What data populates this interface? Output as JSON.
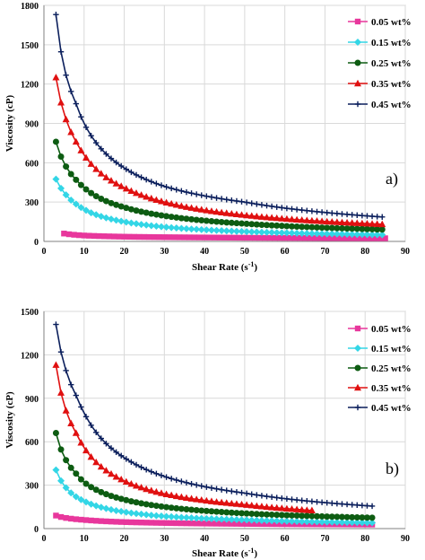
{
  "chart_data": [
    {
      "type": "line",
      "panel_label": "a)",
      "xlabel": "Shear Rate (s",
      "xlabel_sup": "-1",
      "xlabel_close": ")",
      "ylabel": "Viscosity (cP)",
      "xlim": [
        0,
        90
      ],
      "ylim": [
        0,
        1800
      ],
      "xticks": [
        "0",
        "10",
        "20",
        "30",
        "40",
        "50",
        "60",
        "70",
        "80",
        "90"
      ],
      "yticks": [
        "0",
        "300",
        "600",
        "900",
        "1200",
        "1500",
        "1800"
      ],
      "grid": true,
      "legend_position": "right",
      "x_range": [
        3,
        85
      ],
      "series": [
        {
          "name": "0.05 wt%",
          "color": "#e8379c",
          "marker": "square",
          "x_start": 5,
          "values_at": [
            [
              5,
              60
            ],
            [
              10,
              45
            ],
            [
              20,
              36
            ],
            [
              40,
              30
            ],
            [
              85,
              24
            ]
          ]
        },
        {
          "name": "0.15 wt%",
          "color": "#33d6e6",
          "marker": "diamond",
          "x_start": 3,
          "values_at": [
            [
              3,
              475
            ],
            [
              5,
              375
            ],
            [
              8,
              285
            ],
            [
              10,
              245
            ],
            [
              20,
              150
            ],
            [
              30,
              110
            ],
            [
              50,
              75
            ],
            [
              85,
              50
            ]
          ]
        },
        {
          "name": "0.25 wt%",
          "color": "#0d5c12",
          "marker": "circle",
          "x_start": 3,
          "values_at": [
            [
              3,
              760
            ],
            [
              5,
              600
            ],
            [
              8,
              470
            ],
            [
              10,
              410
            ],
            [
              20,
              260
            ],
            [
              30,
              195
            ],
            [
              50,
              135
            ],
            [
              85,
              90
            ]
          ]
        },
        {
          "name": "0.35 wt%",
          "color": "#e01010",
          "marker": "triangle",
          "x_start": 3,
          "values_at": [
            [
              3,
              1250
            ],
            [
              5,
              980
            ],
            [
              8,
              760
            ],
            [
              10,
              660
            ],
            [
              20,
              410
            ],
            [
              30,
              300
            ],
            [
              50,
              200
            ],
            [
              85,
              130
            ]
          ]
        },
        {
          "name": "0.45 wt%",
          "color": "#0b1f5c",
          "marker": "plus",
          "x_start": 3,
          "values_at": [
            [
              3,
              1730
            ],
            [
              5,
              1330
            ],
            [
              8,
              1050
            ],
            [
              10,
              900
            ],
            [
              20,
              560
            ],
            [
              30,
              420
            ],
            [
              50,
              300
            ],
            [
              85,
              185
            ]
          ]
        }
      ]
    },
    {
      "type": "line",
      "panel_label": "b)",
      "xlabel": "Shear Rate (s",
      "xlabel_sup": "-1",
      "xlabel_close": ")",
      "ylabel": "Viscosity (cP)",
      "xlim": [
        0,
        90
      ],
      "ylim": [
        0,
        1500
      ],
      "xticks": [
        "0",
        "10",
        "20",
        "30",
        "40",
        "50",
        "60",
        "70",
        "80",
        "90"
      ],
      "yticks": [
        "0",
        "300",
        "600",
        "900",
        "1200",
        "1500"
      ],
      "grid": true,
      "legend_position": "right",
      "series": [
        {
          "name": "0.05 wt%",
          "color": "#e8379c",
          "marker": "square",
          "values_at": [
            [
              3,
              90
            ],
            [
              10,
              60
            ],
            [
              20,
              45
            ],
            [
              40,
              35
            ],
            [
              82,
              28
            ]
          ]
        },
        {
          "name": "0.15 wt%",
          "color": "#33d6e6",
          "marker": "diamond",
          "values_at": [
            [
              3,
              405
            ],
            [
              5,
              300
            ],
            [
              8,
              220
            ],
            [
              10,
              190
            ],
            [
              20,
              115
            ],
            [
              30,
              85
            ],
            [
              50,
              60
            ],
            [
              82,
              40
            ]
          ]
        },
        {
          "name": "0.25 wt%",
          "color": "#0d5c12",
          "marker": "circle",
          "values_at": [
            [
              3,
              660
            ],
            [
              5,
              500
            ],
            [
              8,
              380
            ],
            [
              10,
              320
            ],
            [
              20,
              200
            ],
            [
              30,
              150
            ],
            [
              50,
              105
            ],
            [
              82,
              75
            ]
          ]
        },
        {
          "name": "0.35 wt%",
          "color": "#e01010",
          "marker": "triangle",
          "values_at": [
            [
              3,
              1130
            ],
            [
              5,
              860
            ],
            [
              8,
              660
            ],
            [
              10,
              560
            ],
            [
              20,
              330
            ],
            [
              30,
              240
            ],
            [
              50,
              165
            ],
            [
              67,
              125
            ]
          ]
        },
        {
          "name": "0.45 wt%",
          "color": "#0b1f5c",
          "marker": "plus",
          "values_at": [
            [
              3,
              1410
            ],
            [
              5,
              1140
            ],
            [
              8,
              920
            ],
            [
              10,
              800
            ],
            [
              20,
              490
            ],
            [
              30,
              360
            ],
            [
              50,
              245
            ],
            [
              82,
              155
            ]
          ]
        }
      ]
    }
  ]
}
